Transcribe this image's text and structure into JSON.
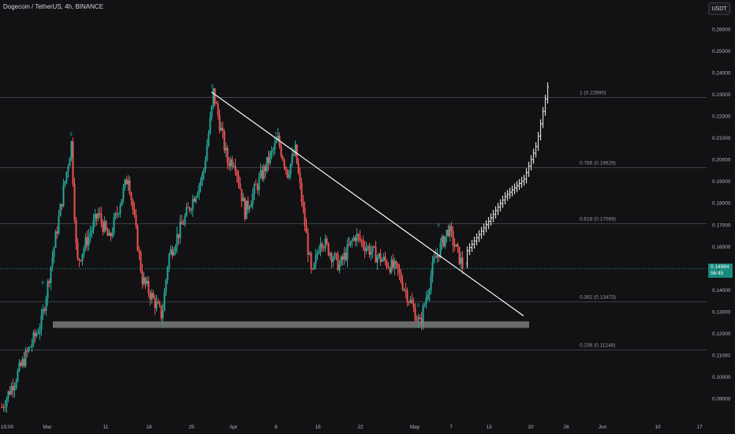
{
  "header": {
    "title": "Dogecoin / TetherUS, 4h, BINANCE",
    "currency": "USDT"
  },
  "price_tag": {
    "price": "0.14994",
    "countdown": "56:45"
  },
  "colors": {
    "background": "#121214",
    "grid_line": "#3c3f47",
    "up": "#26a69a",
    "down": "#ef5350",
    "projection": "#d9d9d9",
    "trendline": "#ffffff",
    "support_zone": "#6b6b6b",
    "current_price_line": "#1f8f7f"
  },
  "chart_data": {
    "type": "candlestick",
    "symbol": "Dogecoin / TetherUS",
    "interval": "4h",
    "exchange": "BINANCE",
    "ylim": [
      0.084,
      0.266
    ],
    "y_ticks": [
      "0.09000",
      "0.10000",
      "0.11000",
      "0.12000",
      "0.13000",
      "0.14000",
      "0.15000",
      "0.16000",
      "0.17000",
      "0.18000",
      "0.19000",
      "0.20000",
      "0.21000",
      "0.22000",
      "0.23000",
      "0.24000",
      "0.25000",
      "0.26000"
    ],
    "x_ticks": [
      "15:00",
      "Mar",
      "11",
      "18",
      "25",
      "Apr",
      "8",
      "15",
      "22",
      "May",
      "7",
      "13",
      "20",
      "26",
      "Jun",
      "10",
      "17"
    ],
    "fib_levels": [
      {
        "ratio": "1",
        "label": "1 (0.22890)",
        "price": 0.2289
      },
      {
        "ratio": "0.786",
        "label": "0.786 (0.19629)",
        "price": 0.19629
      },
      {
        "ratio": "0.618",
        "label": "0.618 (0.17069)",
        "price": 0.17069
      },
      {
        "ratio": "0.382",
        "label": "0.382 (0.13473)",
        "price": 0.13473
      },
      {
        "ratio": "0.236",
        "label": "0.236 (0.11248)",
        "price": 0.11248
      }
    ],
    "support_zone": {
      "low": 0.1225,
      "high": 0.1255
    },
    "current_price": 0.14994,
    "trendline": {
      "start_price": 0.2311,
      "end_price": 0.128
    },
    "price_path": [
      [
        "15:00",
        0.086
      ],
      [
        "Mar",
        0.125
      ],
      [
        "Mar",
        0.2075
      ],
      [
        "Mar",
        0.152
      ],
      [
        "11",
        0.175
      ],
      [
        "11",
        0.163
      ],
      [
        "11",
        0.193
      ],
      [
        "18",
        0.145
      ],
      [
        "18",
        0.128
      ],
      [
        "18",
        0.155
      ],
      [
        "25",
        0.193
      ],
      [
        "25",
        0.223
      ],
      [
        "25",
        0.231
      ],
      [
        "25",
        0.199
      ],
      [
        "Apr",
        0.2
      ],
      [
        "Apr",
        0.176
      ],
      [
        "8",
        0.209
      ],
      [
        "8",
        0.194
      ],
      [
        "8",
        0.204
      ],
      [
        "15",
        0.145
      ],
      [
        "15",
        0.164
      ],
      [
        "15",
        0.151
      ],
      [
        "22",
        0.165
      ],
      [
        "22",
        0.157
      ],
      [
        "22",
        0.149
      ],
      [
        "May",
        0.124
      ],
      [
        "May",
        0.153
      ],
      [
        "7",
        0.168
      ],
      [
        "7",
        0.151
      ]
    ],
    "marker_label": "9",
    "projection_path": [
      [
        "13",
        0.158
      ],
      [
        "13",
        0.171
      ],
      [
        "13",
        0.183
      ],
      [
        "20",
        0.191
      ],
      [
        "20",
        0.207
      ],
      [
        "20",
        0.2335
      ]
    ]
  }
}
